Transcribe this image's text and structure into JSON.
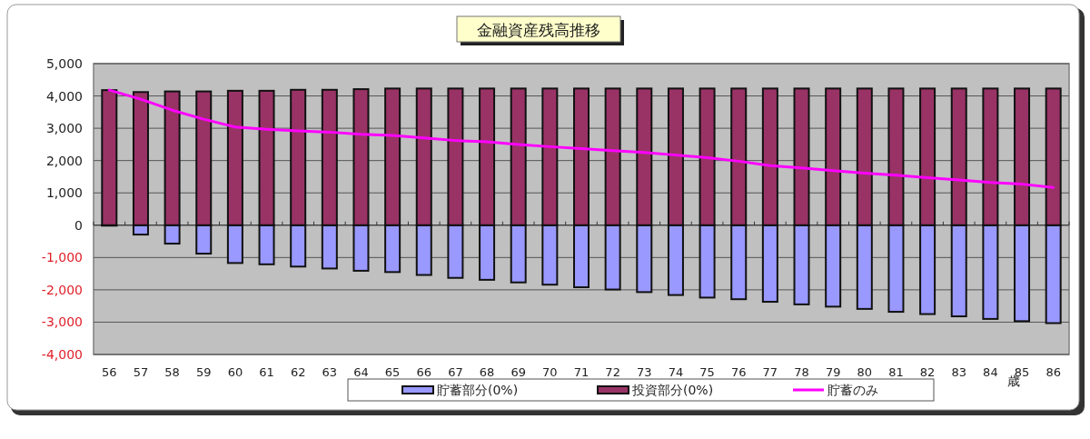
{
  "chart_data": {
    "type": "bar",
    "title": "金融資産残高推移",
    "xlabel": "歳",
    "stacked": true,
    "categories": [
      "56",
      "57",
      "58",
      "59",
      "60",
      "61",
      "62",
      "63",
      "64",
      "65",
      "66",
      "67",
      "68",
      "69",
      "70",
      "71",
      "72",
      "73",
      "74",
      "75",
      "76",
      "77",
      "78",
      "79",
      "80",
      "81",
      "82",
      "83",
      "84",
      "85",
      "86"
    ],
    "series": [
      {
        "name": "貯蓄部分(0%)",
        "color": "#9999ff",
        "values": [
          0,
          -290,
          -570,
          -880,
          -1170,
          -1210,
          -1280,
          -1340,
          -1410,
          -1450,
          -1540,
          -1630,
          -1690,
          -1770,
          -1840,
          -1920,
          -1990,
          -2070,
          -2160,
          -2240,
          -2290,
          -2370,
          -2450,
          -2520,
          -2590,
          -2680,
          -2750,
          -2820,
          -2900,
          -2970,
          -3030
        ]
      },
      {
        "name": "投資部分(0%)",
        "color": "#993366",
        "values": [
          4180,
          4120,
          4140,
          4140,
          4160,
          4160,
          4190,
          4190,
          4210,
          4230,
          4230,
          4230,
          4230,
          4230,
          4230,
          4230,
          4230,
          4230,
          4230,
          4230,
          4230,
          4230,
          4230,
          4230,
          4230,
          4230,
          4230,
          4230,
          4230,
          4230,
          4230
        ]
      },
      {
        "name": "貯蓄のみ",
        "type": "line",
        "color": "#ff00ff",
        "values": [
          4180,
          3900,
          3560,
          3280,
          3040,
          2970,
          2920,
          2880,
          2810,
          2780,
          2700,
          2620,
          2580,
          2500,
          2430,
          2370,
          2310,
          2250,
          2170,
          2090,
          1980,
          1840,
          1770,
          1690,
          1610,
          1550,
          1470,
          1400,
          1320,
          1270,
          1170
        ]
      }
    ],
    "ylim": [
      -4000,
      5000
    ],
    "yticks": [
      {
        "value": 5000,
        "label": "5,000"
      },
      {
        "value": 4000,
        "label": "4,000"
      },
      {
        "value": 3000,
        "label": "3,000"
      },
      {
        "value": 2000,
        "label": "2,000"
      },
      {
        "value": 1000,
        "label": "1,000"
      },
      0,
      {
        "value": -1000,
        "label": "-1,000"
      },
      {
        "value": -2000,
        "label": "-2,000"
      },
      {
        "value": -3000,
        "label": "-3,000"
      },
      {
        "value": -4000,
        "label": "-4,000"
      }
    ],
    "grid": "y",
    "legend": "bottom",
    "line_style": "solid",
    "marker": "none"
  }
}
